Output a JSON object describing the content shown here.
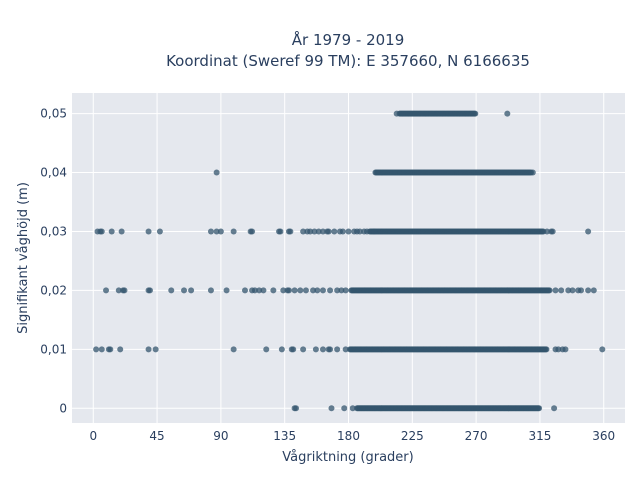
{
  "chart_data": {
    "type": "scatter",
    "title_line1": "År 1979 - 2019",
    "title_line2": "Koordinat (Sweref 99 TM): E 357660, N 6166635",
    "xlabel": "Vågriktning (grader)",
    "ylabel": "Signifikant våghöjd (m)",
    "xlim": [
      -15,
      375
    ],
    "ylim": [
      -0.0025,
      0.0535
    ],
    "x_ticks": [
      0,
      45,
      90,
      135,
      180,
      225,
      270,
      315,
      360
    ],
    "x_tick_labels": [
      "0",
      "45",
      "90",
      "135",
      "180",
      "225",
      "270",
      "315",
      "360"
    ],
    "y_ticks": [
      0,
      0.01,
      0.02,
      0.03,
      0.04,
      0.05
    ],
    "y_tick_labels": [
      "0",
      "0,01",
      "0,02",
      "0,03",
      "0,04",
      "0,05"
    ],
    "grid": true,
    "marker_color": "#34566e",
    "plot_bg": "#e5e8ee",
    "rows": [
      {
        "y": 0.0,
        "dense": [
          [
            186,
            315
          ]
        ],
        "points": [
          142,
          143,
          168,
          177,
          183,
          325
        ]
      },
      {
        "y": 0.01,
        "dense": [
          [
            181,
            320
          ]
        ],
        "points": [
          2,
          6,
          11,
          12,
          19,
          39,
          44,
          99,
          122,
          133,
          140,
          141,
          148,
          157,
          162,
          166,
          167,
          172,
          178,
          326,
          328,
          331,
          333,
          359
        ]
      },
      {
        "y": 0.02,
        "dense": [
          [
            182,
            322
          ]
        ],
        "points": [
          9,
          18,
          21,
          22,
          39,
          40,
          55,
          64,
          69,
          83,
          94,
          107,
          112,
          114,
          117,
          120,
          127,
          134,
          137,
          138,
          142,
          146,
          150,
          155,
          158,
          162,
          167,
          172,
          175,
          178,
          326,
          330,
          335,
          338,
          342,
          344,
          349,
          353
        ]
      },
      {
        "y": 0.03,
        "dense": [
          [
            195,
            318
          ]
        ],
        "points": [
          3,
          5,
          6,
          13,
          20,
          39,
          47,
          83,
          87,
          90,
          99,
          111,
          112,
          131,
          132,
          138,
          139,
          148,
          151,
          153,
          156,
          159,
          162,
          165,
          166,
          170,
          174,
          176,
          180,
          184,
          186,
          188,
          191,
          193,
          198,
          320,
          323,
          324,
          349
        ]
      },
      {
        "y": 0.04,
        "dense": [
          [
            199,
            309
          ]
        ],
        "points": [
          87,
          310
        ]
      },
      {
        "y": 0.05,
        "dense": [
          [
            216,
            270
          ]
        ],
        "points": [
          214,
          292
        ]
      }
    ]
  }
}
